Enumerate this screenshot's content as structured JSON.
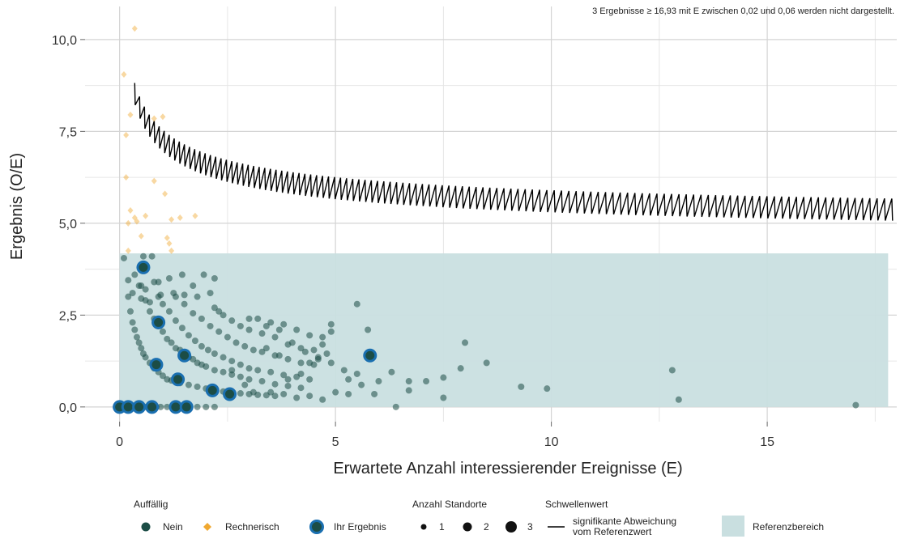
{
  "chart_data": {
    "type": "scatter",
    "xlabel": "Erwartete Anzahl interessierender Ereignisse (E)",
    "ylabel": "Ergebnis (O/E)",
    "xlim": [
      -0.8,
      18
    ],
    "ylim": [
      -0.4,
      10.9
    ],
    "x_ticks": [
      0,
      5,
      10,
      15
    ],
    "x_tick_labels": [
      "0",
      "5",
      "10",
      "15"
    ],
    "y_ticks": [
      0,
      2.5,
      5,
      7.5,
      10
    ],
    "y_tick_labels": [
      "0,0",
      "2,5",
      "5,0",
      "7,5",
      "10,0"
    ],
    "grid": true,
    "note": "3 Ergebnisse ≥ 16,93 mit E zwischen 0,02 und 0,06 werden nicht dargestellt.",
    "reference_band": {
      "x": [
        0,
        17.8
      ],
      "y": [
        0,
        4.18
      ],
      "color": "#c9dfe0"
    },
    "colors": {
      "nein": "#1c4d46",
      "rechnerisch": "#f0a830",
      "ihr_ergebnis_ring": "#1a6fb0",
      "threshold": "#000000",
      "grid": "#d4d4d4"
    },
    "points_nein": [
      [
        0.95,
        0.0
      ],
      [
        1.1,
        0.0
      ],
      [
        1.25,
        0.0
      ],
      [
        1.4,
        0.0
      ],
      [
        1.6,
        0.0
      ],
      [
        1.8,
        0.0
      ],
      [
        2.0,
        0.0
      ],
      [
        2.2,
        0.0
      ],
      [
        0.1,
        0.0
      ],
      [
        0.25,
        0.0
      ],
      [
        0.35,
        0.0
      ],
      [
        0.6,
        0.0
      ],
      [
        0.85,
        0.0
      ],
      [
        0.1,
        4.05
      ],
      [
        0.35,
        3.6
      ],
      [
        0.55,
        4.1
      ],
      [
        0.75,
        4.1
      ],
      [
        0.2,
        3.45
      ],
      [
        0.3,
        3.1
      ],
      [
        0.45,
        3.3
      ],
      [
        0.6,
        3.2
      ],
      [
        0.9,
        3.4
      ],
      [
        1.15,
        3.5
      ],
      [
        1.45,
        3.6
      ],
      [
        1.7,
        3.3
      ],
      [
        1.95,
        3.6
      ],
      [
        2.2,
        3.5
      ],
      [
        0.5,
        2.95
      ],
      [
        0.7,
        2.85
      ],
      [
        0.95,
        3.05
      ],
      [
        1.25,
        3.1
      ],
      [
        1.5,
        3.05
      ],
      [
        1.8,
        3.0
      ],
      [
        2.1,
        3.1
      ],
      [
        2.3,
        2.6
      ],
      [
        0.2,
        3.0
      ],
      [
        0.25,
        2.6
      ],
      [
        0.3,
        2.3
      ],
      [
        0.35,
        2.1
      ],
      [
        0.4,
        1.9
      ],
      [
        0.45,
        1.75
      ],
      [
        0.5,
        1.6
      ],
      [
        0.55,
        1.45
      ],
      [
        0.6,
        1.35
      ],
      [
        0.7,
        1.2
      ],
      [
        0.8,
        1.05
      ],
      [
        0.9,
        0.95
      ],
      [
        1.0,
        0.85
      ],
      [
        1.1,
        0.75
      ],
      [
        1.2,
        0.72
      ],
      [
        1.4,
        0.65
      ],
      [
        1.6,
        0.6
      ],
      [
        1.8,
        0.55
      ],
      [
        2.0,
        0.5
      ],
      [
        2.2,
        0.45
      ],
      [
        2.4,
        0.42
      ],
      [
        2.6,
        0.4
      ],
      [
        2.8,
        0.37
      ],
      [
        3.0,
        0.35
      ],
      [
        3.2,
        0.33
      ],
      [
        3.4,
        0.32
      ],
      [
        3.6,
        0.3
      ],
      [
        0.5,
        3.3
      ],
      [
        0.6,
        2.9
      ],
      [
        0.7,
        2.6
      ],
      [
        0.8,
        2.4
      ],
      [
        0.9,
        2.2
      ],
      [
        1.0,
        2.05
      ],
      [
        1.1,
        1.85
      ],
      [
        1.2,
        1.75
      ],
      [
        1.3,
        1.6
      ],
      [
        1.4,
        1.55
      ],
      [
        1.5,
        1.45
      ],
      [
        1.6,
        1.35
      ],
      [
        1.7,
        1.3
      ],
      [
        1.8,
        1.2
      ],
      [
        1.9,
        1.15
      ],
      [
        2.0,
        1.1
      ],
      [
        2.2,
        1.0
      ],
      [
        2.4,
        0.95
      ],
      [
        2.6,
        0.88
      ],
      [
        2.8,
        0.82
      ],
      [
        3.0,
        0.75
      ],
      [
        3.3,
        0.7
      ],
      [
        3.6,
        0.62
      ],
      [
        3.9,
        0.57
      ],
      [
        4.2,
        0.52
      ],
      [
        0.8,
        3.4
      ],
      [
        0.9,
        3.0
      ],
      [
        1.0,
        2.8
      ],
      [
        1.15,
        2.6
      ],
      [
        1.3,
        2.35
      ],
      [
        1.45,
        2.15
      ],
      [
        1.6,
        1.95
      ],
      [
        1.75,
        1.8
      ],
      [
        1.9,
        1.65
      ],
      [
        2.05,
        1.55
      ],
      [
        2.2,
        1.45
      ],
      [
        2.4,
        1.35
      ],
      [
        2.6,
        1.25
      ],
      [
        2.8,
        1.15
      ],
      [
        3.0,
        1.05
      ],
      [
        3.2,
        1.0
      ],
      [
        3.5,
        0.95
      ],
      [
        3.8,
        0.87
      ],
      [
        4.1,
        0.82
      ],
      [
        4.4,
        0.75
      ],
      [
        1.3,
        3.0
      ],
      [
        1.5,
        2.8
      ],
      [
        1.7,
        2.55
      ],
      [
        1.9,
        2.4
      ],
      [
        2.1,
        2.2
      ],
      [
        2.3,
        2.05
      ],
      [
        2.5,
        1.9
      ],
      [
        2.7,
        1.75
      ],
      [
        2.9,
        1.65
      ],
      [
        3.1,
        1.55
      ],
      [
        3.3,
        1.5
      ],
      [
        3.6,
        1.4
      ],
      [
        3.9,
        1.3
      ],
      [
        4.2,
        1.2
      ],
      [
        4.5,
        1.15
      ],
      [
        2.2,
        2.7
      ],
      [
        2.4,
        2.5
      ],
      [
        2.6,
        2.35
      ],
      [
        2.8,
        2.2
      ],
      [
        3.0,
        2.1
      ],
      [
        3.3,
        2.0
      ],
      [
        3.6,
        1.9
      ],
      [
        3.9,
        1.7
      ],
      [
        4.2,
        1.6
      ],
      [
        4.5,
        1.55
      ],
      [
        4.8,
        1.45
      ],
      [
        3.2,
        2.4
      ],
      [
        3.5,
        2.3
      ],
      [
        3.8,
        2.25
      ],
      [
        4.1,
        2.1
      ],
      [
        4.4,
        1.95
      ],
      [
        4.7,
        1.9
      ],
      [
        3.0,
        2.4
      ],
      [
        3.4,
        2.2
      ],
      [
        3.7,
        2.1
      ],
      [
        4.0,
        1.75
      ],
      [
        4.3,
        1.5
      ],
      [
        4.6,
        1.3
      ],
      [
        4.9,
        1.2
      ],
      [
        5.2,
        1.0
      ],
      [
        5.5,
        0.9
      ],
      [
        3.5,
        0.4
      ],
      [
        3.8,
        0.35
      ],
      [
        4.1,
        0.25
      ],
      [
        4.4,
        0.3
      ],
      [
        4.7,
        0.2
      ],
      [
        5.0,
        0.4
      ],
      [
        5.3,
        0.35
      ],
      [
        4.9,
        2.25
      ],
      [
        4.9,
        2.05
      ],
      [
        5.75,
        2.1
      ],
      [
        5.5,
        2.8
      ],
      [
        4.6,
        1.35
      ],
      [
        4.7,
        1.7
      ],
      [
        5.3,
        0.75
      ],
      [
        5.6,
        0.6
      ],
      [
        6.0,
        0.7
      ],
      [
        6.3,
        0.95
      ],
      [
        6.7,
        0.7
      ],
      [
        6.7,
        0.45
      ],
      [
        5.9,
        0.35
      ],
      [
        6.4,
        0.0
      ],
      [
        7.1,
        0.7
      ],
      [
        7.5,
        0.8
      ],
      [
        7.5,
        0.25
      ],
      [
        7.9,
        1.05
      ],
      [
        8.0,
        1.75
      ],
      [
        8.5,
        1.2
      ],
      [
        9.3,
        0.55
      ],
      [
        9.9,
        0.5
      ],
      [
        12.8,
        1.0
      ],
      [
        12.95,
        0.2
      ],
      [
        17.05,
        0.05
      ],
      [
        3.9,
        0.75
      ],
      [
        4.2,
        0.9
      ],
      [
        4.4,
        1.2
      ],
      [
        2.9,
        0.6
      ],
      [
        3.1,
        0.4
      ],
      [
        2.6,
        1.0
      ],
      [
        3.4,
        1.6
      ],
      [
        3.7,
        1.4
      ]
    ],
    "points_rechnerisch": [
      [
        0.35,
        10.3
      ],
      [
        0.1,
        9.05
      ],
      [
        0.25,
        7.95
      ],
      [
        0.15,
        7.4
      ],
      [
        0.8,
        7.85
      ],
      [
        1.0,
        7.9
      ],
      [
        0.15,
        6.25
      ],
      [
        0.8,
        6.15
      ],
      [
        1.05,
        5.8
      ],
      [
        0.25,
        5.35
      ],
      [
        0.35,
        5.15
      ],
      [
        0.2,
        5.0
      ],
      [
        0.4,
        5.05
      ],
      [
        0.6,
        5.2
      ],
      [
        1.2,
        5.1
      ],
      [
        1.4,
        5.15
      ],
      [
        1.75,
        5.2
      ],
      [
        0.5,
        4.65
      ],
      [
        1.1,
        4.6
      ],
      [
        1.15,
        4.45
      ],
      [
        0.2,
        4.25
      ],
      [
        1.2,
        4.25
      ]
    ],
    "points_ihr_ergebnis": [
      [
        0.55,
        3.8
      ],
      [
        0.9,
        2.3
      ],
      [
        1.5,
        1.4
      ],
      [
        0.85,
        1.15
      ],
      [
        1.35,
        0.75
      ],
      [
        2.15,
        0.45
      ],
      [
        2.55,
        0.35
      ],
      [
        5.8,
        1.4
      ],
      [
        0.0,
        0.0
      ],
      [
        0.2,
        0.0
      ],
      [
        0.45,
        0.0
      ],
      [
        0.75,
        0.0
      ],
      [
        1.3,
        0.0
      ],
      [
        1.55,
        0.0
      ]
    ],
    "threshold_line": {
      "x_start": 0.35,
      "x_end": 18,
      "formula_note": "significance threshold curve"
    },
    "legend": {
      "auffaellig_title": "Auffällig",
      "nein": "Nein",
      "rechnerisch": "Rechnerisch",
      "ihr_ergebnis": "Ihr Ergebnis",
      "standorte_title": "Anzahl Standorte",
      "standorte_sizes": [
        "1",
        "2",
        "3"
      ],
      "schwellenwert_title": "Schwellenwert",
      "schwellenwert_line1": "signifikante Abweichung",
      "schwellenwert_line2": "vom Referenzwert",
      "referenzbereich": "Referenzbereich"
    }
  }
}
